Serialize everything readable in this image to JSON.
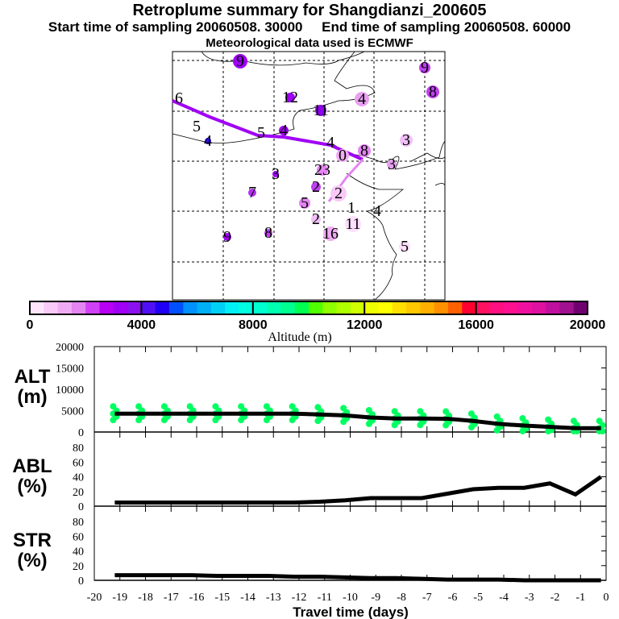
{
  "header": {
    "title": "Retroplume summary for Shangdianzi_200605",
    "subtitle": "Start time of sampling 20060508. 30000     End time of sampling 20060508. 60000",
    "met": "Meteorological data used is ECMWF"
  },
  "map": {
    "labels": [
      "9",
      "6",
      "9",
      "8",
      "12",
      "11",
      "4",
      "5",
      "4",
      "5",
      "4",
      "4",
      "3",
      "3",
      "3",
      "7",
      "9",
      "8",
      "23",
      "2",
      "5",
      "2",
      "16",
      "11",
      "2",
      "1",
      "4",
      "5",
      "0",
      "8"
    ]
  },
  "colorbar": {
    "title": "Altitude (m)",
    "range": [
      0,
      20000
    ],
    "ticks": [
      "0",
      "4000",
      "8000",
      "12000",
      "16000",
      "20000"
    ],
    "colors": [
      "#fde6fb",
      "#f9c9f7",
      "#f0acf3",
      "#e485f2",
      "#d041f5",
      "#b800f5",
      "#a000f5",
      "#8c10f0",
      "#5010f5",
      "#2000f5",
      "#0050ff",
      "#0090ff",
      "#00b0f5",
      "#00d0f5",
      "#00f0f5",
      "#00ffe0",
      "#00ffd0",
      "#00ffb0",
      "#00ff90",
      "#00ff50",
      "#50ff00",
      "#90ff00",
      "#b0ff00",
      "#d0ff00",
      "#f0ff00",
      "#ffff00",
      "#ffe000",
      "#ffc800",
      "#ffb000",
      "#ff9000",
      "#ff6000",
      "#ff0030",
      "#ff1060",
      "#ff1080",
      "#ff1090",
      "#f010a0",
      "#e010a0",
      "#c010a0",
      "#a0108f",
      "#700070"
    ]
  },
  "chart_data": [
    {
      "type": "line",
      "title": "ALT",
      "ylabel": "ALT (m)",
      "ylabel_lines": [
        "ALT",
        "(m)"
      ],
      "ylim": [
        0,
        20000
      ],
      "yticks": [
        "0",
        "5000",
        "10000",
        "15000",
        "20000"
      ],
      "x": [
        -19.2,
        -18.2,
        -17.2,
        -16.2,
        -15.2,
        -14.2,
        -13.2,
        -12.2,
        -11.2,
        -10.2,
        -9.2,
        -8.2,
        -7.2,
        -6.2,
        -5.2,
        -4.2,
        -3.2,
        -2.2,
        -1.2,
        -0.2
      ],
      "values": [
        4300,
        4300,
        4300,
        4300,
        4300,
        4300,
        4300,
        4300,
        4100,
        3900,
        3400,
        3150,
        3150,
        3100,
        2600,
        1900,
        1500,
        1200,
        900,
        900
      ],
      "scatter_color": "#00ff60"
    },
    {
      "type": "line",
      "title": "ABL",
      "ylabel": "ABL (%)",
      "ylabel_lines": [
        "ABL",
        "(%)"
      ],
      "ylim": [
        0,
        90
      ],
      "yticks": [
        "0",
        "20",
        "40",
        "60",
        "80"
      ],
      "x": [
        -19.2,
        -18.2,
        -17.2,
        -16.2,
        -15.2,
        -14.2,
        -13.2,
        -12.2,
        -11.2,
        -10.2,
        -9.2,
        -8.2,
        -7.2,
        -6.2,
        -5.2,
        -4.2,
        -3.2,
        -2.2,
        -1.2,
        -0.2
      ],
      "values": [
        5,
        5,
        5,
        5,
        5,
        5,
        5,
        5,
        6,
        8,
        11,
        11,
        11,
        17,
        23,
        25,
        25,
        31,
        16,
        40
      ]
    },
    {
      "type": "line",
      "title": "STR",
      "ylabel": "STR (%)",
      "ylabel_lines": [
        "STR",
        "(%)"
      ],
      "ylim": [
        0,
        90
      ],
      "yticks": [
        "0",
        "20",
        "40",
        "60",
        "80"
      ],
      "x": [
        -19.2,
        -18.2,
        -17.2,
        -16.2,
        -15.2,
        -14.2,
        -13.2,
        -12.2,
        -11.2,
        -10.2,
        -9.2,
        -8.2,
        -7.2,
        -6.2,
        -5.2,
        -4.2,
        -3.2,
        -2.2,
        -1.2,
        -0.2
      ],
      "values": [
        7,
        7,
        7,
        7,
        6,
        6,
        6,
        5,
        5,
        4,
        3,
        3,
        2,
        1,
        1,
        1,
        0,
        0,
        0,
        0
      ],
      "xlabel": "Travel time (days)",
      "xlim": [
        -20,
        0
      ],
      "xticks": [
        "-20",
        "-19",
        "-18",
        "-17",
        "-16",
        "-15",
        "-14",
        "-13",
        "-12",
        "-11",
        "-10",
        "-9",
        "-8",
        "-7",
        "-6",
        "-5",
        "-4",
        "-3",
        "-2",
        "-1",
        "0"
      ]
    }
  ]
}
